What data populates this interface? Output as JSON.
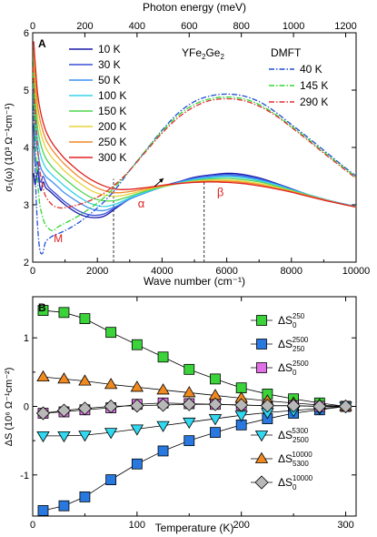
{
  "chart_data": [
    {
      "panel": "A",
      "type": "line",
      "title": "YFe2Ge2",
      "xlabel": "Wave number (cm⁻¹)",
      "x2label": "Photon energy (meV)",
      "ylabel": "σ₁(ω) (10³ Ω⁻¹cm⁻¹)",
      "xlim": [
        0,
        10000
      ],
      "x2lim": [
        0,
        1240
      ],
      "ylim": [
        2,
        6
      ],
      "xticks": [
        0,
        2000,
        4000,
        6000,
        8000,
        10000
      ],
      "x2ticks": [
        0,
        200,
        400,
        600,
        800,
        1000,
        1200
      ],
      "yticks": [
        2,
        3,
        4,
        5,
        6
      ],
      "legend_placement": "top-left",
      "dmft_legend_title": "DMFT",
      "annotations": {
        "M": {
          "text": "M",
          "x": 650,
          "y": 2.35
        },
        "alpha": {
          "text": "α",
          "x": 3250,
          "y": 2.95
        },
        "beta": {
          "text": "β",
          "x": 5700,
          "y": 3.15
        }
      },
      "markers": {
        "dashed_verticals_x": [
          2500,
          5300
        ]
      },
      "series": [
        {
          "name": "10 K",
          "color": "#1a1aa8",
          "kind": "exp",
          "x": [
            30,
            80,
            150,
            210,
            260,
            320,
            400,
            500,
            700,
            1000,
            1400,
            1800,
            2200,
            2600,
            3000,
            3500,
            4000,
            4500,
            5000,
            5500,
            6000,
            6500,
            7000,
            7500,
            8000,
            8500,
            9000,
            9500,
            10000
          ],
          "y": [
            3.55,
            3.35,
            3.6,
            3.35,
            3.25,
            3.4,
            3.3,
            3.25,
            3.15,
            3.0,
            2.85,
            2.78,
            2.8,
            2.95,
            3.1,
            3.22,
            3.32,
            3.4,
            3.48,
            3.52,
            3.55,
            3.53,
            3.47,
            3.38,
            3.28,
            3.18,
            3.1,
            3.03,
            2.97
          ]
        },
        {
          "name": "30 K",
          "color": "#3a4fd6",
          "kind": "exp",
          "x": [
            30,
            80,
            150,
            210,
            260,
            320,
            400,
            500,
            700,
            1000,
            1400,
            1800,
            2200,
            2600,
            3000,
            3500,
            4000,
            4500,
            5000,
            5500,
            6000,
            6500,
            7000,
            7500,
            8000,
            8500,
            9000,
            9500,
            10000
          ],
          "y": [
            4.4,
            3.7,
            3.75,
            3.45,
            3.4,
            3.5,
            3.4,
            3.3,
            3.2,
            3.05,
            2.9,
            2.82,
            2.84,
            2.97,
            3.1,
            3.22,
            3.32,
            3.4,
            3.47,
            3.51,
            3.53,
            3.51,
            3.45,
            3.37,
            3.27,
            3.18,
            3.1,
            3.03,
            2.97
          ]
        },
        {
          "name": "50 K",
          "color": "#3f8ff0",
          "kind": "exp",
          "x": [
            30,
            80,
            150,
            250,
            400,
            600,
            800,
            1000,
            1400,
            1800,
            2200,
            2600,
            3000,
            3500,
            4000,
            4500,
            5000,
            5500,
            6000,
            6500,
            7000,
            7500,
            8000,
            8500,
            9000,
            9500,
            10000
          ],
          "y": [
            5.1,
            4.3,
            3.95,
            3.65,
            3.5,
            3.4,
            3.3,
            3.2,
            3.05,
            2.93,
            2.9,
            2.98,
            3.1,
            3.21,
            3.31,
            3.39,
            3.45,
            3.49,
            3.51,
            3.49,
            3.44,
            3.36,
            3.27,
            3.18,
            3.1,
            3.03,
            2.97
          ]
        },
        {
          "name": "100 K",
          "color": "#35d2e8",
          "kind": "exp",
          "x": [
            30,
            80,
            150,
            250,
            400,
            600,
            800,
            1000,
            1400,
            1800,
            2200,
            2600,
            3000,
            3500,
            4000,
            4500,
            5000,
            5500,
            6000,
            6500,
            7000,
            7500,
            8000,
            8500,
            9000,
            9500,
            10000
          ],
          "y": [
            5.3,
            4.6,
            4.15,
            3.85,
            3.65,
            3.52,
            3.42,
            3.32,
            3.15,
            3.02,
            2.97,
            3.02,
            3.12,
            3.22,
            3.31,
            3.38,
            3.44,
            3.47,
            3.49,
            3.47,
            3.42,
            3.35,
            3.26,
            3.18,
            3.1,
            3.03,
            2.97
          ]
        },
        {
          "name": "150 K",
          "color": "#4ed64e",
          "kind": "exp",
          "x": [
            30,
            80,
            150,
            250,
            400,
            600,
            800,
            1000,
            1400,
            1800,
            2200,
            2600,
            3000,
            3500,
            4000,
            4500,
            5000,
            5500,
            6000,
            6500,
            7000,
            7500,
            8000,
            8500,
            9000,
            9500,
            10000
          ],
          "y": [
            5.5,
            4.85,
            4.35,
            4.05,
            3.82,
            3.66,
            3.55,
            3.45,
            3.27,
            3.13,
            3.07,
            3.08,
            3.15,
            3.24,
            3.31,
            3.37,
            3.42,
            3.45,
            3.46,
            3.44,
            3.4,
            3.33,
            3.25,
            3.17,
            3.09,
            3.02,
            2.96
          ]
        },
        {
          "name": "200 K",
          "color": "#e8d23a",
          "kind": "exp",
          "x": [
            30,
            80,
            150,
            250,
            400,
            600,
            800,
            1000,
            1400,
            1800,
            2200,
            2600,
            3000,
            3500,
            4000,
            4500,
            5000,
            5500,
            6000,
            6500,
            7000,
            7500,
            8000,
            8500,
            9000,
            9500,
            10000
          ],
          "y": [
            5.65,
            5.1,
            4.55,
            4.25,
            4.0,
            3.82,
            3.7,
            3.58,
            3.4,
            3.25,
            3.17,
            3.15,
            3.19,
            3.26,
            3.32,
            3.37,
            3.41,
            3.43,
            3.43,
            3.41,
            3.37,
            3.31,
            3.24,
            3.16,
            3.09,
            3.02,
            2.96
          ]
        },
        {
          "name": "250 K",
          "color": "#f08a2a",
          "kind": "exp",
          "x": [
            30,
            80,
            150,
            250,
            400,
            600,
            800,
            1000,
            1400,
            1800,
            2200,
            2600,
            3000,
            3500,
            4000,
            4500,
            5000,
            5500,
            6000,
            6500,
            7000,
            7500,
            8000,
            8500,
            9000,
            9500,
            10000
          ],
          "y": [
            5.75,
            5.3,
            4.75,
            4.42,
            4.15,
            3.96,
            3.82,
            3.7,
            3.5,
            3.35,
            3.25,
            3.21,
            3.23,
            3.28,
            3.33,
            3.37,
            3.4,
            3.41,
            3.41,
            3.39,
            3.35,
            3.29,
            3.23,
            3.16,
            3.09,
            3.02,
            2.96
          ]
        },
        {
          "name": "300 K",
          "color": "#e02020",
          "kind": "exp",
          "x": [
            30,
            80,
            150,
            250,
            400,
            600,
            800,
            1000,
            1400,
            1800,
            2200,
            2600,
            3000,
            3500,
            4000,
            4500,
            5000,
            5500,
            6000,
            6500,
            7000,
            7500,
            8000,
            8500,
            9000,
            9500,
            10000
          ],
          "y": [
            5.85,
            5.45,
            4.95,
            4.6,
            4.3,
            4.08,
            3.93,
            3.8,
            3.6,
            3.44,
            3.33,
            3.27,
            3.27,
            3.3,
            3.34,
            3.37,
            3.39,
            3.4,
            3.39,
            3.37,
            3.33,
            3.28,
            3.22,
            3.15,
            3.08,
            3.02,
            2.96
          ]
        },
        {
          "name": "40 K",
          "color": "#1f4fd6",
          "kind": "dmft",
          "dash": "dashdot",
          "x": [
            10,
            100,
            200,
            300,
            400,
            600,
            800,
            1000,
            1400,
            1800,
            2200,
            2600,
            3000,
            3500,
            4000,
            4500,
            5000,
            5500,
            6000,
            6500,
            7000,
            7500,
            8000,
            8500,
            9000,
            9500,
            10000
          ],
          "y": [
            5.1,
            3.2,
            2.3,
            2.15,
            2.35,
            2.45,
            2.5,
            2.55,
            2.68,
            2.85,
            3.05,
            3.3,
            3.6,
            3.95,
            4.3,
            4.6,
            4.8,
            4.9,
            4.93,
            4.9,
            4.8,
            4.62,
            4.4,
            4.18,
            3.95,
            3.72,
            3.5
          ]
        },
        {
          "name": "145 K",
          "color": "#30d830",
          "kind": "dmft",
          "dash": "dashdot",
          "x": [
            10,
            100,
            200,
            300,
            400,
            600,
            800,
            1000,
            1400,
            1800,
            2200,
            2600,
            3000,
            3500,
            4000,
            4500,
            5000,
            5500,
            6000,
            6500,
            7000,
            7500,
            8000,
            8500,
            9000,
            9500,
            10000
          ],
          "y": [
            5.3,
            3.9,
            3.1,
            2.8,
            2.65,
            2.55,
            2.62,
            2.68,
            2.8,
            2.95,
            3.12,
            3.35,
            3.6,
            3.95,
            4.28,
            4.56,
            4.75,
            4.85,
            4.88,
            4.85,
            4.75,
            4.58,
            4.37,
            4.15,
            3.92,
            3.7,
            3.48
          ]
        },
        {
          "name": "290 K",
          "color": "#e03030",
          "kind": "dmft",
          "dash": "dashdot",
          "x": [
            10,
            100,
            200,
            300,
            400,
            600,
            800,
            1000,
            1400,
            1800,
            2200,
            2600,
            3000,
            3500,
            4000,
            4500,
            5000,
            5500,
            6000,
            6500,
            7000,
            7500,
            8000,
            8500,
            9000,
            9500,
            10000
          ],
          "y": [
            5.4,
            4.4,
            3.7,
            3.35,
            3.15,
            3.0,
            2.95,
            2.95,
            3.0,
            3.08,
            3.2,
            3.38,
            3.6,
            3.93,
            4.25,
            4.52,
            4.71,
            4.82,
            4.85,
            4.82,
            4.72,
            4.56,
            4.35,
            4.13,
            3.9,
            3.68,
            3.46
          ]
        }
      ]
    },
    {
      "panel": "B",
      "type": "line",
      "xlabel": "Temperature (K)",
      "ylabel": "ΔS (10⁶ Ω⁻¹cm⁻²)",
      "xlim": [
        0,
        310
      ],
      "ylim": [
        -1.6,
        1.6
      ],
      "xticks": [
        0,
        100,
        200,
        300
      ],
      "yticks": [
        -1,
        0,
        1
      ],
      "legend_placement": "right",
      "x": [
        10,
        30,
        50,
        75,
        100,
        125,
        150,
        175,
        200,
        225,
        250,
        275,
        300
      ],
      "series": [
        {
          "name": "ΔS₀²⁵⁰",
          "label_main": "ΔS",
          "label_sub": "0",
          "label_sup": "250",
          "marker": "square",
          "color": "#3ad43a",
          "values": [
            1.4,
            1.37,
            1.28,
            1.08,
            0.9,
            0.72,
            0.54,
            0.4,
            0.27,
            0.18,
            0.11,
            0.05,
            0.0
          ]
        },
        {
          "name": "ΔS₂₅₀²⁵⁰⁰",
          "label_main": "ΔS",
          "label_sub": "250",
          "label_sup": "2500",
          "marker": "square",
          "color": "#2878e0",
          "values": [
            -1.52,
            -1.45,
            -1.32,
            -1.07,
            -0.84,
            -0.65,
            -0.5,
            -0.38,
            -0.27,
            -0.18,
            -0.1,
            -0.05,
            0.0
          ]
        },
        {
          "name": "ΔS₀²⁵⁰⁰",
          "label_main": "ΔS",
          "label_sub": "0",
          "label_sup": "2500",
          "marker": "square",
          "color": "#e070e8",
          "values": [
            -0.1,
            -0.08,
            -0.05,
            -0.02,
            0.03,
            0.05,
            0.04,
            0.03,
            0.02,
            0.01,
            0.01,
            0.0,
            0.0
          ]
        },
        {
          "name": "ΔS₂₅₀₀⁵³⁰⁰",
          "label_main": "ΔS",
          "label_sub": "2500",
          "label_sup": "5300",
          "marker": "triangle-down",
          "color": "#30d8f0",
          "values": [
            -0.43,
            -0.43,
            -0.42,
            -0.38,
            -0.33,
            -0.28,
            -0.23,
            -0.18,
            -0.13,
            -0.09,
            -0.06,
            -0.03,
            0.0
          ]
        },
        {
          "name": "ΔS₅₃₀₀¹⁰⁰⁰⁰",
          "label_main": "ΔS",
          "label_sub": "5300",
          "label_sup": "10000",
          "marker": "triangle-up",
          "color": "#f08a20",
          "values": [
            0.43,
            0.4,
            0.37,
            0.32,
            0.28,
            0.24,
            0.2,
            0.16,
            0.12,
            0.08,
            0.05,
            0.02,
            0.0
          ]
        },
        {
          "name": "ΔS₀¹⁰⁰⁰⁰",
          "label_main": "ΔS",
          "label_sub": "0",
          "label_sup": "10000",
          "marker": "diamond",
          "color": "#b8b8b8",
          "values": [
            -0.1,
            -0.06,
            -0.03,
            0.0,
            0.01,
            0.02,
            0.03,
            0.03,
            0.02,
            0.01,
            0.01,
            0.0,
            0.0
          ]
        }
      ]
    }
  ],
  "panels": {
    "a_label": "A",
    "b_label": "B"
  },
  "title_parts": {
    "main": "YFe",
    "sub1": "2",
    "mid": "Ge",
    "sub2": "2"
  }
}
